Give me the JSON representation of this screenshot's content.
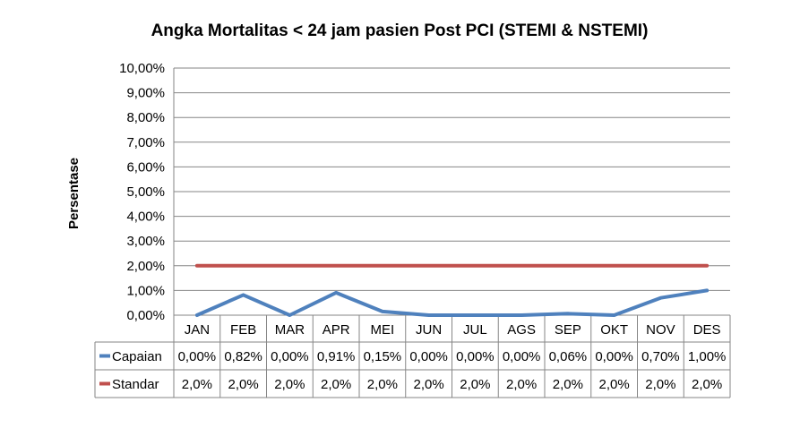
{
  "chart_data": {
    "type": "line",
    "title": "Angka Mortalitas < 24 jam pasien Post PCI (STEMI & NSTEMI)",
    "xlabel": "",
    "ylabel": "Persentase",
    "ylim": [
      0,
      10
    ],
    "yticks": [
      0,
      1,
      2,
      3,
      4,
      5,
      6,
      7,
      8,
      9,
      10
    ],
    "ytick_labels": [
      "0,00%",
      "1,00%",
      "2,00%",
      "3,00%",
      "4,00%",
      "5,00%",
      "6,00%",
      "7,00%",
      "8,00%",
      "9,00%",
      "10,00%"
    ],
    "grid": true,
    "legend": "data-table",
    "categories": [
      "JAN",
      "FEB",
      "MAR",
      "APR",
      "MEI",
      "JUN",
      "JUL",
      "AGS",
      "SEP",
      "OKT",
      "NOV",
      "DES"
    ],
    "series": [
      {
        "name": "Capaian",
        "color": "#4F81BD",
        "values": [
          0.0,
          0.82,
          0.0,
          0.91,
          0.15,
          0.0,
          0.0,
          0.0,
          0.06,
          0.0,
          0.7,
          1.0
        ],
        "labels": [
          "0,00%",
          "0,82%",
          "0,00%",
          "0,91%",
          "0,15%",
          "0,00%",
          "0,00%",
          "0,00%",
          "0,06%",
          "0,00%",
          "0,70%",
          "1,00%"
        ]
      },
      {
        "name": "Standar",
        "color": "#C0504D",
        "values": [
          2.0,
          2.0,
          2.0,
          2.0,
          2.0,
          2.0,
          2.0,
          2.0,
          2.0,
          2.0,
          2.0,
          2.0
        ],
        "labels": [
          "2,0%",
          "2,0%",
          "2,0%",
          "2,0%",
          "2,0%",
          "2,0%",
          "2,0%",
          "2,0%",
          "2,0%",
          "2,0%",
          "2,0%",
          "2,0%"
        ]
      }
    ]
  }
}
